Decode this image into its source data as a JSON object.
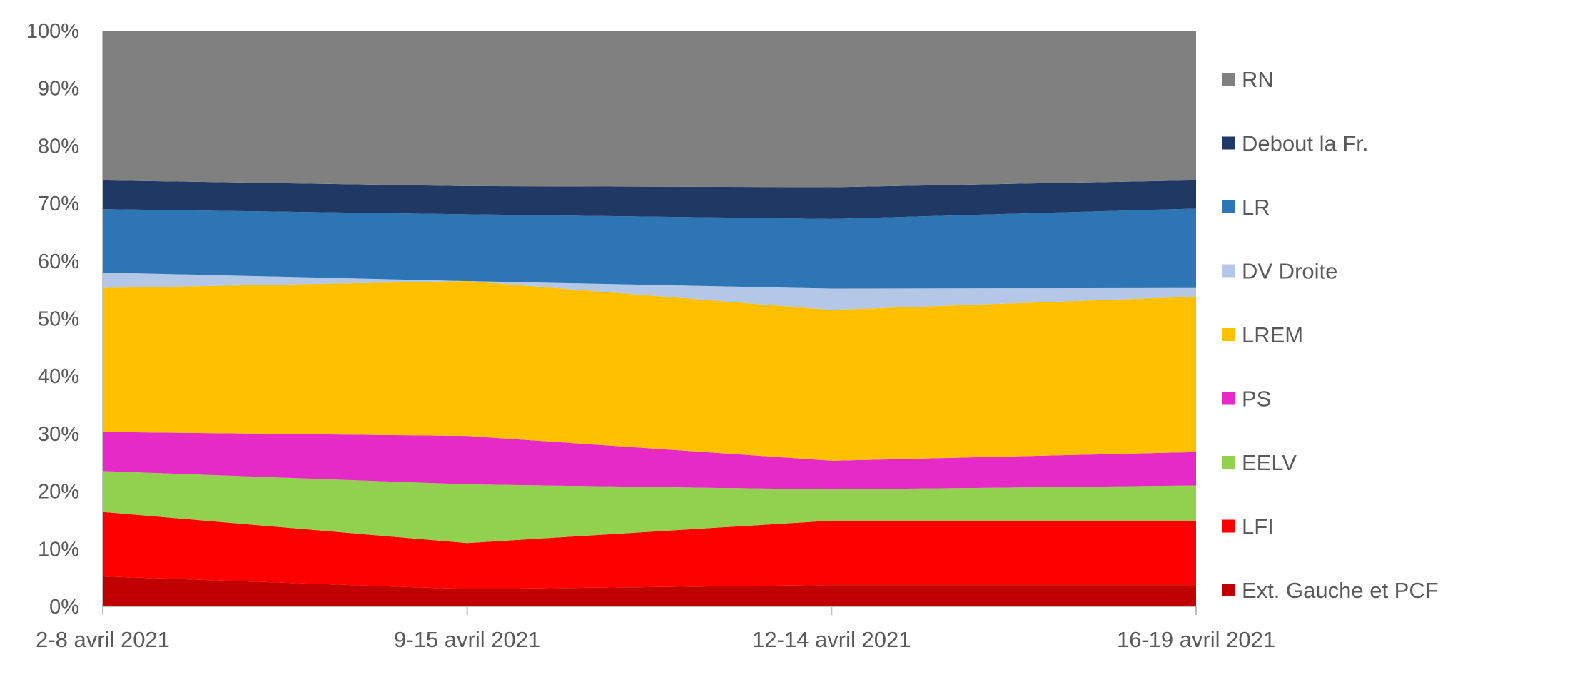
{
  "chart_data": {
    "type": "area",
    "stacked": "percent",
    "categories": [
      "2-8 avril 2021",
      "9-15 avril 2021",
      "12-14 avril 2021",
      "16-19 avril 2021"
    ],
    "y_ticks": [
      "0%",
      "10%",
      "20%",
      "30%",
      "40%",
      "50%",
      "60%",
      "70%",
      "80%",
      "90%",
      "100%"
    ],
    "ylim": [
      0,
      100
    ],
    "grid": false,
    "legend_position": "right",
    "series": [
      {
        "name": "Ext. Gauche et PCF",
        "color": "#C00000",
        "values": [
          5.2,
          3,
          3.7,
          3.7
        ]
      },
      {
        "name": "LFI",
        "color": "#FF0000",
        "values": [
          11.2,
          8,
          11.2,
          11.2
        ]
      },
      {
        "name": "EELV",
        "color": "#92D050",
        "values": [
          7.1,
          10.2,
          5.4,
          6.1
        ]
      },
      {
        "name": "PS",
        "color": "#E52AC7",
        "values": [
          6.8,
          8.4,
          5,
          5.8
        ]
      },
      {
        "name": "LREM",
        "color": "#FFC000",
        "values": [
          25,
          26.9,
          26.2,
          27
        ]
      },
      {
        "name": "DV Droite",
        "color": "#B4C7E7",
        "values": [
          2.7,
          0,
          3.7,
          1.5
        ]
      },
      {
        "name": "LR",
        "color": "#2E75B6",
        "values": [
          11,
          11.6,
          12.1,
          13.8
        ]
      },
      {
        "name": "Debout la Fr.",
        "color": "#203864",
        "values": [
          5,
          4.9,
          5.5,
          4.9
        ]
      },
      {
        "name": "RN",
        "color": "#808080",
        "values": [
          26,
          27,
          27.2,
          26
        ]
      }
    ]
  }
}
